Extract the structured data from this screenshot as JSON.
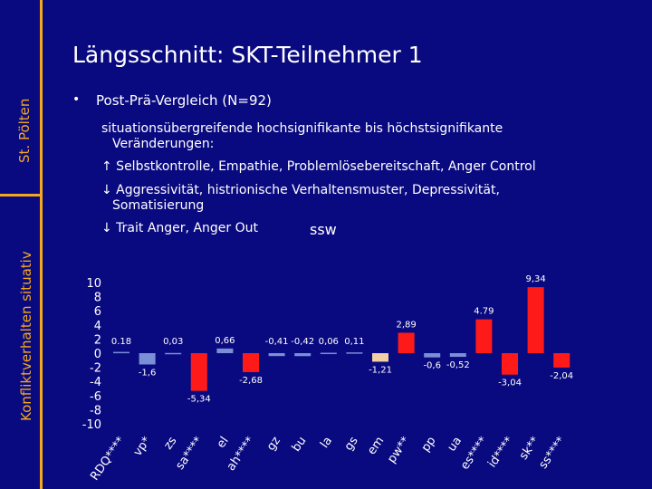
{
  "sidebar": {
    "top_label": "St. Pölten",
    "bottom_label": "Konfliktverhalten situativ"
  },
  "title": "Längsschnitt: SKT-Teilnehmer 1",
  "bullet": {
    "marker": "•",
    "text": "Post-Prä-Vergleich (N=92)",
    "lines": [
      "situationsübergreifende hochsignifikante bis höchstsignifikante",
      "Veränderungen:",
      "↑ Selbstkontrolle, Empathie, Problemlösebereitschaft, Anger Control",
      "↓ Aggressivität, histrionische Verhaltensmuster, Depressivität,",
      "Somatisierung",
      "↓ Trait Anger, Anger Out",
      "ssw"
    ]
  },
  "colors": {
    "background": "#0a0a80",
    "accent": "#f4a81e",
    "bar_red": "#ff1a1a",
    "bar_beige": "#f3cfa6",
    "bar_blue": "#7b8fd6"
  },
  "chart_data": {
    "type": "bar",
    "ylim": [
      -10,
      10
    ],
    "yticks": [
      "10",
      "8",
      "6",
      "4",
      "2",
      "0",
      "-2",
      "-4",
      "-6",
      "-8",
      "-10"
    ],
    "categories": [
      "RDQ****",
      "vp*",
      "zs",
      "sa****",
      "el",
      "ah****",
      "gz",
      "bu",
      "la",
      "gs",
      "em",
      "pw**",
      "pp",
      "ua",
      "es****",
      "id****",
      "sk**",
      "ss****"
    ],
    "values": [
      0.18,
      -1.6,
      0.03,
      -5.34,
      0.66,
      -2.68,
      -0.41,
      -0.42,
      0.06,
      0.11,
      -1.21,
      2.89,
      -0.6,
      -0.52,
      4.79,
      -3.04,
      9.34,
      -2.04
    ],
    "value_labels": [
      "0.18",
      "-1,6",
      "0,03",
      "-5,34",
      "0,66",
      "-2,68",
      "-0,41",
      "-0,42",
      "0,06",
      "0,11",
      "-1,21",
      "2,89",
      "-0,6",
      "-0,52",
      "4.79",
      "-3,04",
      "9,34",
      "-2,04"
    ],
    "bar_colors": [
      "#7b8fd6",
      "#7b8fd6",
      "#7b8fd6",
      "#ff1a1a",
      "#7b8fd6",
      "#ff1a1a",
      "#7b8fd6",
      "#7b8fd6",
      "#7b8fd6",
      "#7b8fd6",
      "#f3cfa6",
      "#ff1a1a",
      "#7b8fd6",
      "#7b8fd6",
      "#ff1a1a",
      "#ff1a1a",
      "#ff1a1a",
      "#ff1a1a"
    ]
  }
}
